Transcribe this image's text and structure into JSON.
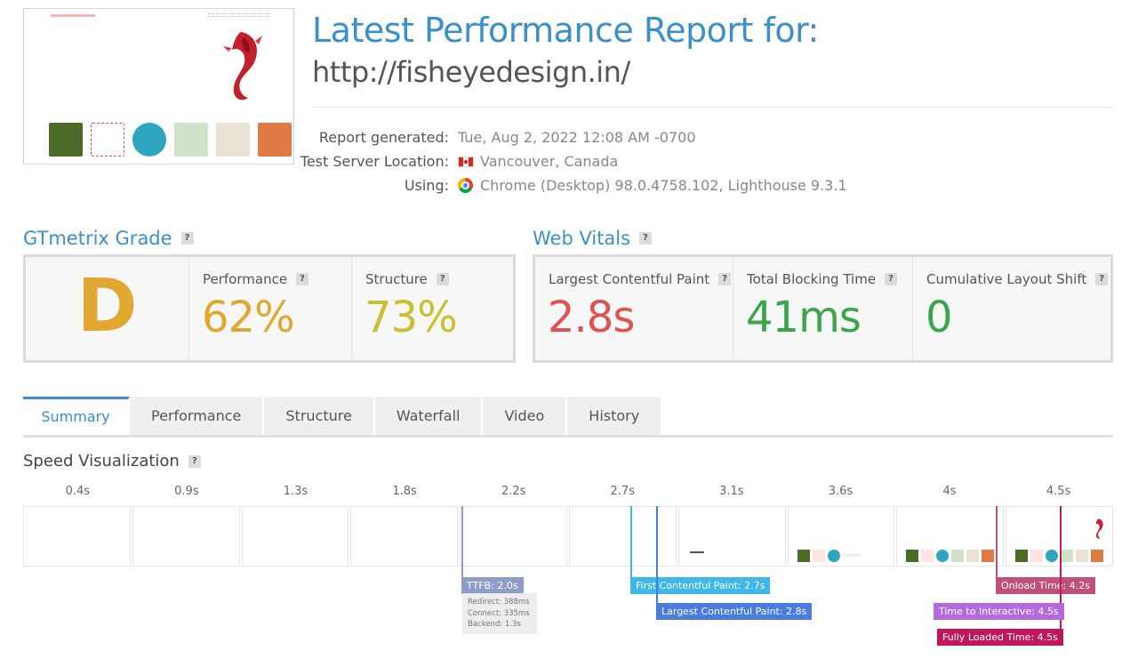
{
  "header": {
    "title": "Latest Performance Report for:",
    "url": "http://fisheyedesign.in/"
  },
  "report": {
    "generated_label": "Report generated:",
    "generated_value": "Tue, Aug 2, 2022 12:08 AM -0700",
    "location_label": "Test Server Location:",
    "location_value": "Vancouver, Canada",
    "using_label": "Using:",
    "using_value": "Chrome (Desktop) 98.0.4758.102, Lighthouse 9.3.1"
  },
  "grade": {
    "section_title": "GTmetrix Grade",
    "letter": "D",
    "performance_label": "Performance",
    "performance_value": "62%",
    "structure_label": "Structure",
    "structure_value": "73%"
  },
  "vitals": {
    "section_title": "Web Vitals",
    "lcp_label": "Largest Contentful Paint",
    "lcp_value": "2.8s",
    "tbt_label": "Total Blocking Time",
    "tbt_value": "41ms",
    "cls_label": "Cumulative Layout Shift",
    "cls_value": "0"
  },
  "tabs": [
    "Summary",
    "Performance",
    "Structure",
    "Waterfall",
    "Video",
    "History"
  ],
  "speed": {
    "title": "Speed Visualization",
    "frame_times": [
      "0.4s",
      "0.9s",
      "1.3s",
      "1.8s",
      "2.2s",
      "2.7s",
      "3.1s",
      "3.6s",
      "4s",
      "4.5s"
    ],
    "ttfb": "TTFB: 2.0s",
    "redirect": "Redirect: 388ms",
    "connect": "Connect: 335ms",
    "backend": "Backend: 1.3s",
    "fcp": "First Contentful Paint: 2.7s",
    "lcp": "Largest Contentful Paint: 2.8s",
    "onload": "Onload Time: 4.2s",
    "tti": "Time to Interactive: 4.5s",
    "fully_loaded": "Fully Loaded Time: 4.5s"
  },
  "colors": {
    "accent": "#3a8fcc",
    "grade_d": "#e0a830",
    "performance": "#e0a830",
    "structure": "#c8c030",
    "lcp": "#e05252",
    "good": "#3aa64a",
    "ttfb": "#8e9dc8",
    "fcp": "#3db8e8",
    "lcp_marker": "#4a7be0",
    "onload": "#c0507a",
    "tti": "#b36adf",
    "fully_loaded": "#c2185b"
  }
}
